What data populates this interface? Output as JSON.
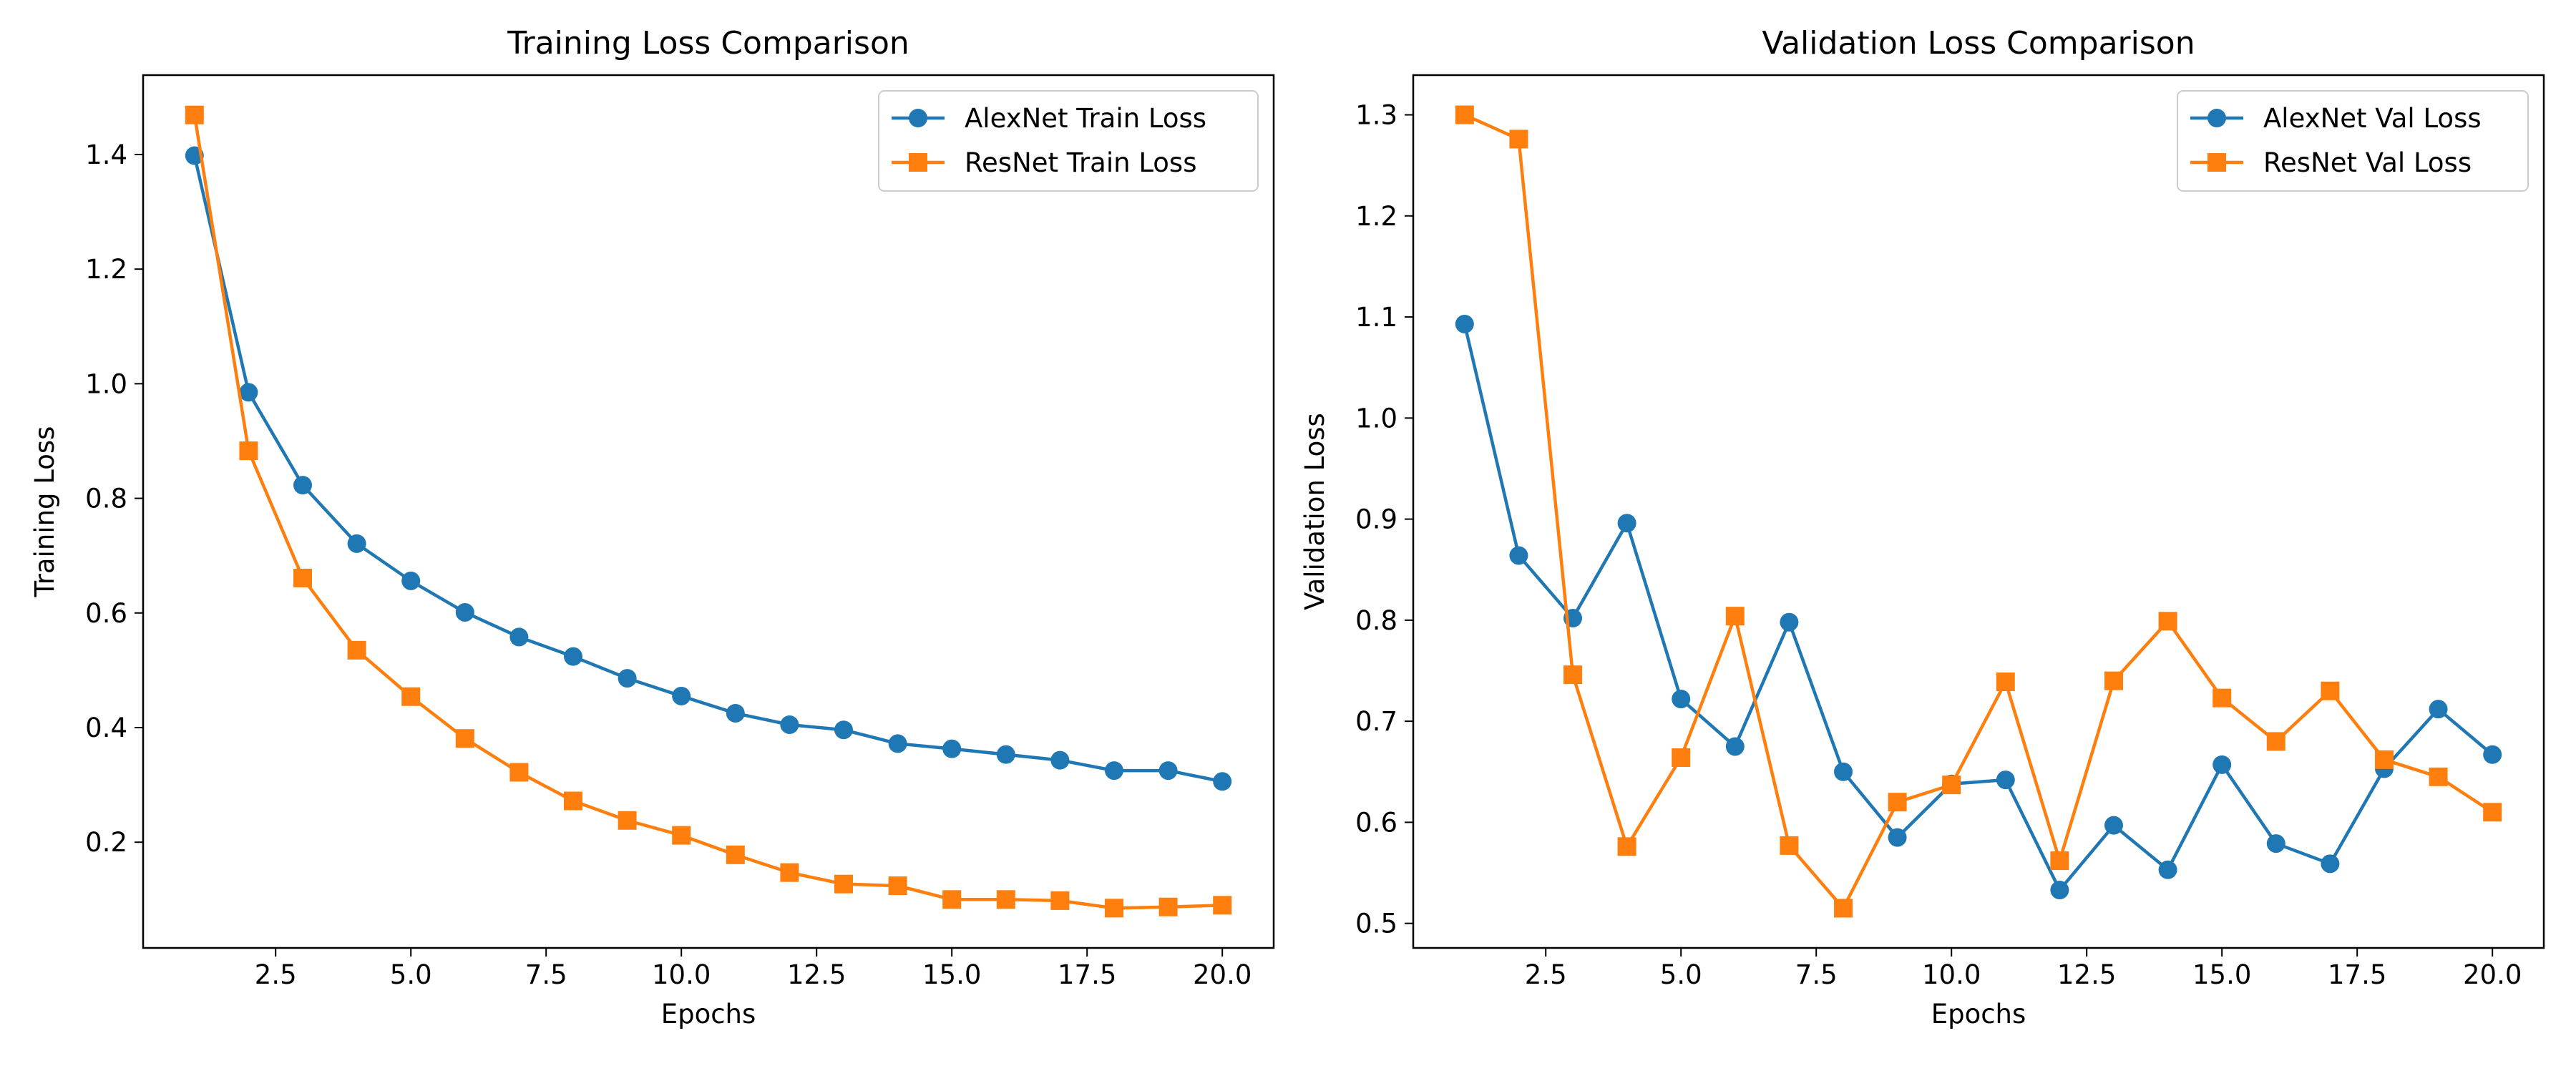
{
  "chart_data": [
    {
      "type": "line",
      "title": "Training Loss Comparison",
      "xlabel": "Epochs",
      "ylabel": "Training Loss",
      "xlim": [
        0.05,
        20.95
      ],
      "ylim": [
        0.0155,
        1.5385
      ],
      "xticks": [
        2.5,
        5.0,
        7.5,
        10.0,
        12.5,
        15.0,
        17.5,
        20.0
      ],
      "xtick_labels": [
        "2.5",
        "5.0",
        "7.5",
        "10.0",
        "12.5",
        "15.0",
        "17.5",
        "20.0"
      ],
      "yticks": [
        0.2,
        0.4,
        0.6,
        0.8,
        1.0,
        1.2,
        1.4
      ],
      "ytick_labels": [
        "0.2",
        "0.4",
        "0.6",
        "0.8",
        "1.0",
        "1.2",
        "1.4"
      ],
      "grid": false,
      "legend_position": "upper right",
      "x": [
        1,
        2,
        3,
        4,
        5,
        6,
        7,
        8,
        9,
        10,
        11,
        12,
        13,
        14,
        15,
        16,
        17,
        18,
        19,
        20
      ],
      "series": [
        {
          "name": "AlexNet Train Loss",
          "color": "#1f77b4",
          "marker": "circle",
          "values": [
            1.398,
            0.985,
            0.823,
            0.721,
            0.656,
            0.601,
            0.558,
            0.524,
            0.486,
            0.455,
            0.425,
            0.405,
            0.396,
            0.372,
            0.363,
            0.353,
            0.343,
            0.325,
            0.325,
            0.306
          ]
        },
        {
          "name": "ResNet Train Loss",
          "color": "#ff7f0e",
          "marker": "square",
          "values": [
            1.469,
            0.883,
            0.661,
            0.535,
            0.454,
            0.381,
            0.322,
            0.272,
            0.238,
            0.212,
            0.178,
            0.147,
            0.127,
            0.124,
            0.1,
            0.1,
            0.098,
            0.085,
            0.087,
            0.09
          ]
        }
      ]
    },
    {
      "type": "line",
      "title": "Validation Loss Comparison",
      "xlabel": "Epochs",
      "ylabel": "Validation Loss",
      "xlim": [
        0.05,
        20.95
      ],
      "ylim": [
        0.4757,
        1.3393
      ],
      "xticks": [
        2.5,
        5.0,
        7.5,
        10.0,
        12.5,
        15.0,
        17.5,
        20.0
      ],
      "xtick_labels": [
        "2.5",
        "5.0",
        "7.5",
        "10.0",
        "12.5",
        "15.0",
        "17.5",
        "20.0"
      ],
      "yticks": [
        0.5,
        0.6,
        0.7,
        0.8,
        0.9,
        1.0,
        1.1,
        1.2,
        1.3
      ],
      "ytick_labels": [
        "0.5",
        "0.6",
        "0.7",
        "0.8",
        "0.9",
        "1.0",
        "1.1",
        "1.2",
        "1.3"
      ],
      "grid": false,
      "legend_position": "upper right",
      "x": [
        1,
        2,
        3,
        4,
        5,
        6,
        7,
        8,
        9,
        10,
        11,
        12,
        13,
        14,
        15,
        16,
        17,
        18,
        19,
        20
      ],
      "series": [
        {
          "name": "AlexNet Val Loss",
          "color": "#1f77b4",
          "marker": "circle",
          "values": [
            1.093,
            0.864,
            0.802,
            0.896,
            0.722,
            0.675,
            0.798,
            0.65,
            0.585,
            0.638,
            0.642,
            0.533,
            0.597,
            0.553,
            0.657,
            0.579,
            0.559,
            0.653,
            0.712,
            0.667
          ]
        },
        {
          "name": "ResNet Val Loss",
          "color": "#ff7f0e",
          "marker": "square",
          "values": [
            1.3,
            1.276,
            0.746,
            0.576,
            0.664,
            0.804,
            0.577,
            0.515,
            0.62,
            0.637,
            0.739,
            0.562,
            0.74,
            0.799,
            0.723,
            0.68,
            0.73,
            0.662,
            0.645,
            0.61
          ]
        }
      ]
    }
  ]
}
